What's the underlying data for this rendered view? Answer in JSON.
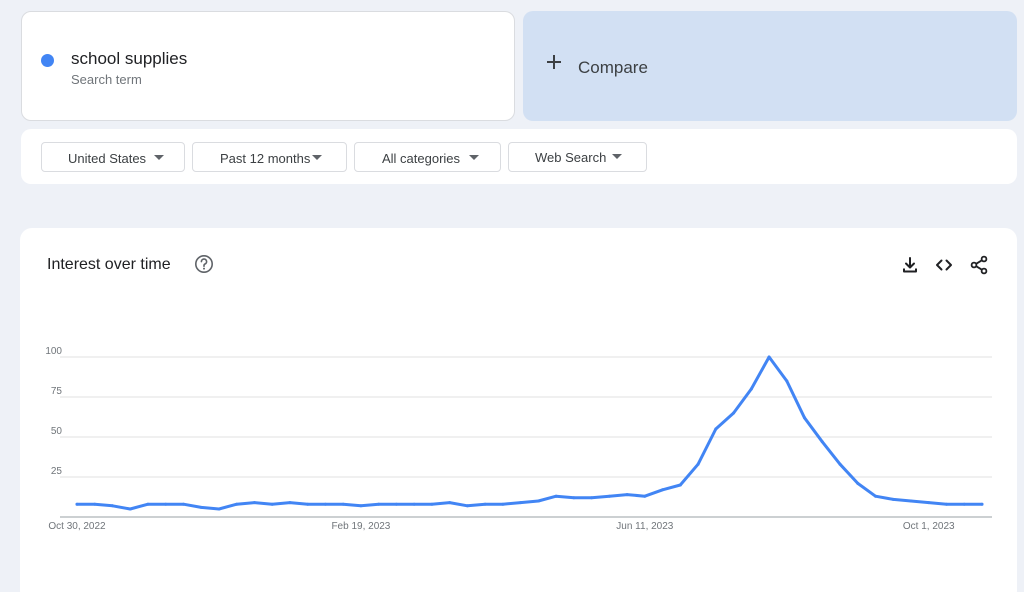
{
  "search_term": {
    "name": "school supplies",
    "subtitle": "Search term",
    "color": "#4285f4"
  },
  "compare": {
    "label": "Compare"
  },
  "filters": {
    "region": "United States",
    "time_range": "Past 12 months",
    "category": "All categories",
    "search_type": "Web Search"
  },
  "chart": {
    "title": "Interest over time",
    "icons": [
      "help-icon",
      "download-icon",
      "embed-icon",
      "share-icon"
    ]
  },
  "chart_data": {
    "type": "line",
    "title": "Interest over time",
    "xlabel": "",
    "ylabel": "",
    "ylim": [
      0,
      100
    ],
    "y_ticks": [
      "25",
      "50",
      "75",
      "100"
    ],
    "x_tick_labels": [
      "Oct 30, 2022",
      "Feb 19, 2023",
      "Jun 11, 2023",
      "Oct 1, 2023"
    ],
    "x_start": "Oct 30, 2022",
    "interval": "weekly",
    "grid": true,
    "series": [
      {
        "color": "#4285f4",
        "values": [
          8,
          8,
          7,
          5,
          8,
          8,
          8,
          6,
          5,
          8,
          9,
          8,
          9,
          8,
          8,
          8,
          7,
          8,
          8,
          8,
          8,
          9,
          7,
          8,
          8,
          9,
          10,
          13,
          12,
          12,
          13,
          14,
          13,
          17,
          20,
          33,
          55,
          65,
          80,
          100,
          85,
          62,
          47,
          33,
          21,
          13,
          11,
          10,
          9,
          8,
          8,
          8
        ]
      }
    ]
  }
}
